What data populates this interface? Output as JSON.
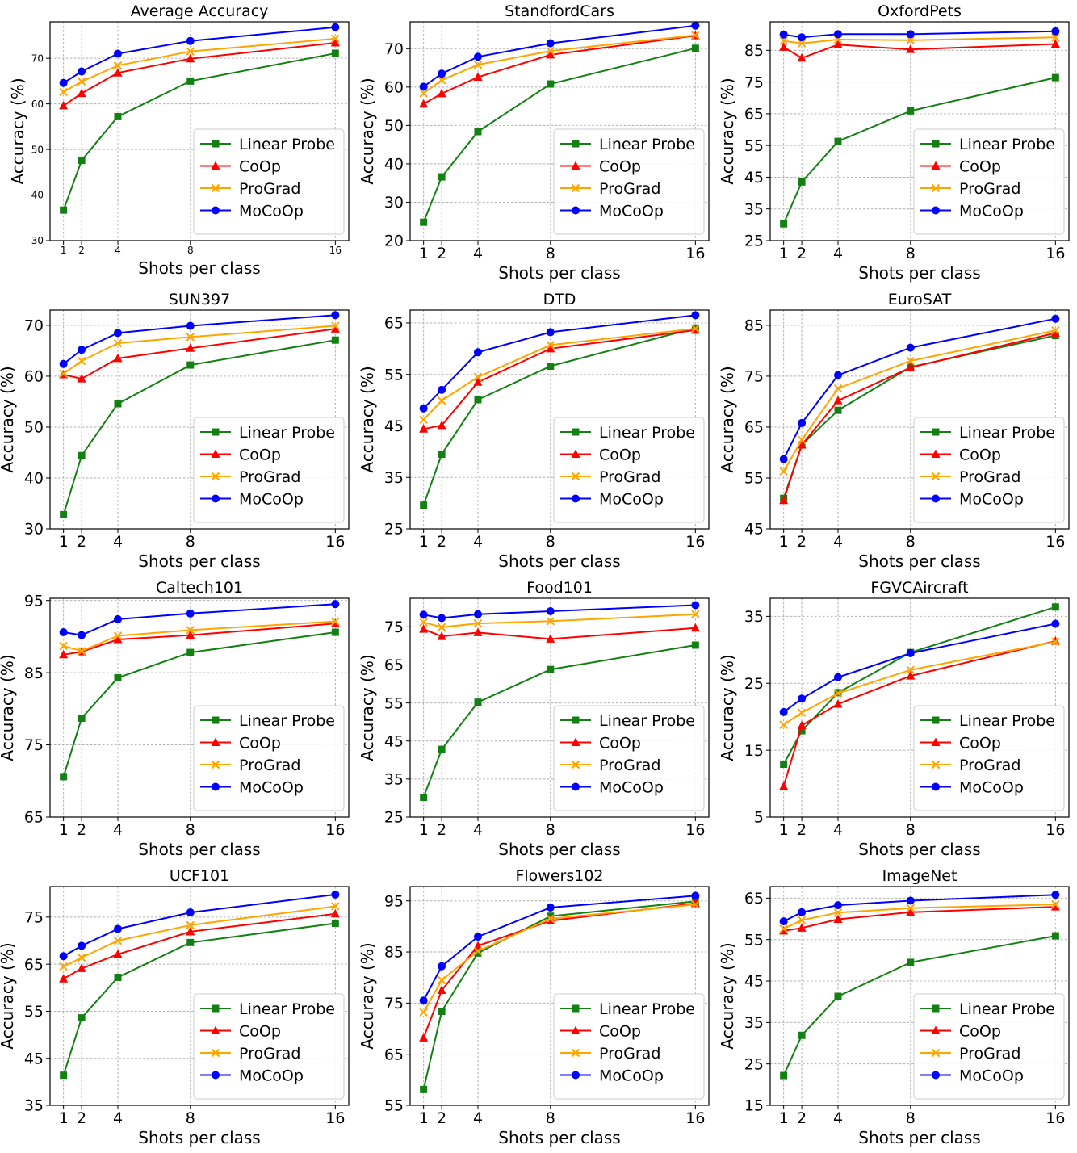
{
  "figure": {
    "x_label": "Shots per class",
    "y_label": "Accuracy (%)",
    "legend": [
      "Linear Probe",
      "CoOp",
      "ProGrad",
      "MoCoOp"
    ],
    "series_colors": {
      "Linear Probe": "#138013",
      "CoOp": "#ff0000",
      "ProGrad": "#ffa500",
      "MoCoOp": "#0000ff"
    },
    "series_markers": {
      "Linear Probe": "square",
      "CoOp": "triangle",
      "ProGrad": "x",
      "MoCoOp": "circle"
    }
  },
  "chart_data": [
    {
      "type": "line",
      "title": "Average Accuracy",
      "xlabel": "Shots per class",
      "ylabel": "Accuracy (%)",
      "x": [
        1,
        2,
        4,
        8,
        16
      ],
      "ylim": [
        30,
        78
      ],
      "yticks": [
        30,
        40,
        50,
        60,
        70
      ],
      "small_ticks": true,
      "series": [
        {
          "name": "Linear Probe",
          "values": [
            36.7,
            47.6,
            57.2,
            65.0,
            71.1
          ]
        },
        {
          "name": "CoOp",
          "values": [
            59.6,
            62.3,
            66.8,
            69.9,
            73.4
          ]
        },
        {
          "name": "ProGrad",
          "values": [
            62.6,
            64.9,
            68.4,
            71.5,
            74.3
          ]
        },
        {
          "name": "MoCoOp",
          "values": [
            64.6,
            67.1,
            71.0,
            73.8,
            76.8
          ]
        }
      ]
    },
    {
      "type": "line",
      "title": "StandfordCars",
      "xlabel": "Shots per class",
      "ylabel": "Accuracy (%)",
      "x": [
        1,
        2,
        4,
        8,
        16
      ],
      "ylim": [
        20,
        77
      ],
      "yticks": [
        20,
        30,
        40,
        50,
        60,
        70
      ],
      "series": [
        {
          "name": "Linear Probe",
          "values": [
            24.8,
            36.6,
            48.4,
            60.8,
            70.1
          ]
        },
        {
          "name": "CoOp",
          "values": [
            55.6,
            58.3,
            62.6,
            68.4,
            73.4
          ]
        },
        {
          "name": "ProGrad",
          "values": [
            58.4,
            61.8,
            65.8,
            69.4,
            73.5
          ]
        },
        {
          "name": "MoCoOp",
          "values": [
            60.1,
            63.5,
            67.9,
            71.4,
            76.0
          ]
        }
      ]
    },
    {
      "type": "line",
      "title": "OxfordPets",
      "xlabel": "Shots per class",
      "ylabel": "Accuracy (%)",
      "x": [
        1,
        2,
        4,
        8,
        16
      ],
      "ylim": [
        25,
        94
      ],
      "yticks": [
        25,
        35,
        45,
        55,
        65,
        75,
        85
      ],
      "series": [
        {
          "name": "Linear Probe",
          "values": [
            30.3,
            43.5,
            56.3,
            65.9,
            76.4
          ]
        },
        {
          "name": "CoOp",
          "values": [
            86.0,
            82.6,
            86.8,
            85.3,
            87.0
          ]
        },
        {
          "name": "ProGrad",
          "values": [
            88.0,
            87.2,
            88.4,
            88.2,
            89.1
          ]
        },
        {
          "name": "MoCoOp",
          "values": [
            90.0,
            89.1,
            90.1,
            90.1,
            91.0
          ]
        }
      ]
    },
    {
      "type": "line",
      "title": "SUN397",
      "xlabel": "Shots per class",
      "ylabel": "Accuracy (%)",
      "x": [
        1,
        2,
        4,
        8,
        16
      ],
      "ylim": [
        30,
        73
      ],
      "yticks": [
        30,
        40,
        50,
        60,
        70
      ],
      "series": [
        {
          "name": "Linear Probe",
          "values": [
            32.8,
            44.4,
            54.6,
            62.2,
            67.1
          ]
        },
        {
          "name": "CoOp",
          "values": [
            60.3,
            59.5,
            63.5,
            65.5,
            69.3
          ]
        },
        {
          "name": "ProGrad",
          "values": [
            60.5,
            63.0,
            66.5,
            67.7,
            69.9
          ]
        },
        {
          "name": "MoCoOp",
          "values": [
            62.4,
            65.2,
            68.5,
            69.9,
            72.0
          ]
        }
      ]
    },
    {
      "type": "line",
      "title": "DTD",
      "xlabel": "Shots per class",
      "ylabel": "Accuracy (%)",
      "x": [
        1,
        2,
        4,
        8,
        16
      ],
      "ylim": [
        25,
        67.5
      ],
      "yticks": [
        25,
        35,
        45,
        55,
        65
      ],
      "series": [
        {
          "name": "Linear Probe",
          "values": [
            29.6,
            39.5,
            50.1,
            56.6,
            64.0
          ]
        },
        {
          "name": "CoOp",
          "values": [
            44.4,
            45.1,
            53.5,
            60.0,
            63.6
          ]
        },
        {
          "name": "ProGrad",
          "values": [
            46.2,
            49.9,
            54.5,
            60.7,
            63.9
          ]
        },
        {
          "name": "MoCoOp",
          "values": [
            48.4,
            52.0,
            59.3,
            63.2,
            66.5
          ]
        }
      ]
    },
    {
      "type": "line",
      "title": "EuroSAT",
      "xlabel": "Shots per class",
      "ylabel": "Accuracy (%)",
      "x": [
        1,
        2,
        4,
        8,
        16
      ],
      "ylim": [
        45,
        88
      ],
      "yticks": [
        45,
        55,
        65,
        75,
        85
      ],
      "series": [
        {
          "name": "Linear Probe",
          "values": [
            51.0,
            61.5,
            68.3,
            76.8,
            83.0
          ]
        },
        {
          "name": "CoOp",
          "values": [
            50.6,
            61.5,
            70.2,
            76.7,
            83.5
          ]
        },
        {
          "name": "ProGrad",
          "values": [
            56.3,
            62.5,
            72.6,
            78.0,
            84.0
          ]
        },
        {
          "name": "MoCoOp",
          "values": [
            58.7,
            65.8,
            75.2,
            80.6,
            86.3
          ]
        }
      ]
    },
    {
      "type": "line",
      "title": "Caltech101",
      "xlabel": "Shots per class",
      "ylabel": "Accuracy (%)",
      "x": [
        1,
        2,
        4,
        8,
        16
      ],
      "ylim": [
        65,
        95.3
      ],
      "yticks": [
        65,
        75,
        85,
        95
      ],
      "series": [
        {
          "name": "Linear Probe",
          "values": [
            70.6,
            78.7,
            84.3,
            87.8,
            90.6
          ]
        },
        {
          "name": "CoOp",
          "values": [
            87.5,
            87.9,
            89.6,
            90.2,
            91.8
          ]
        },
        {
          "name": "ProGrad",
          "values": [
            88.7,
            88.0,
            90.1,
            90.9,
            92.1
          ]
        },
        {
          "name": "MoCoOp",
          "values": [
            90.6,
            90.2,
            92.4,
            93.2,
            94.5
          ]
        }
      ]
    },
    {
      "type": "line",
      "title": "Food101",
      "xlabel": "Shots per class",
      "ylabel": "Accuracy (%)",
      "x": [
        1,
        2,
        4,
        8,
        16
      ],
      "ylim": [
        25,
        82.5
      ],
      "yticks": [
        25,
        35,
        45,
        55,
        65,
        75
      ],
      "series": [
        {
          "name": "Linear Probe",
          "values": [
            30.2,
            42.8,
            55.2,
            63.8,
            70.2
          ]
        },
        {
          "name": "CoOp",
          "values": [
            74.4,
            72.5,
            73.5,
            71.8,
            74.7
          ]
        },
        {
          "name": "ProGrad",
          "values": [
            76.2,
            74.9,
            75.9,
            76.5,
            78.3
          ]
        },
        {
          "name": "MoCoOp",
          "values": [
            78.2,
            77.3,
            78.3,
            79.1,
            80.7
          ]
        }
      ]
    },
    {
      "type": "line",
      "title": "FGVCAircraft",
      "xlabel": "Shots per class",
      "ylabel": "Accuracy (%)",
      "x": [
        1,
        2,
        4,
        8,
        16
      ],
      "ylim": [
        5,
        37.7
      ],
      "yticks": [
        5,
        15,
        25,
        35
      ],
      "series": [
        {
          "name": "Linear Probe",
          "values": [
            12.9,
            17.9,
            23.6,
            29.6,
            36.4
          ]
        },
        {
          "name": "CoOp",
          "values": [
            9.6,
            18.7,
            21.9,
            26.1,
            31.3
          ]
        },
        {
          "name": "ProGrad",
          "values": [
            18.8,
            20.6,
            23.5,
            27.0,
            31.2
          ]
        },
        {
          "name": "MoCoOp",
          "values": [
            20.7,
            22.7,
            25.9,
            29.5,
            33.9
          ]
        }
      ]
    },
    {
      "type": "line",
      "title": "UCF101",
      "xlabel": "Shots per class",
      "ylabel": "Accuracy (%)",
      "x": [
        1,
        2,
        4,
        8,
        16
      ],
      "ylim": [
        35,
        81.5
      ],
      "yticks": [
        35,
        45,
        55,
        65,
        75
      ],
      "series": [
        {
          "name": "Linear Probe",
          "values": [
            41.4,
            53.6,
            62.2,
            69.6,
            73.7
          ]
        },
        {
          "name": "CoOp",
          "values": [
            61.9,
            64.1,
            67.1,
            71.9,
            75.7
          ]
        },
        {
          "name": "ProGrad",
          "values": [
            64.5,
            66.4,
            70.0,
            73.3,
            77.3
          ]
        },
        {
          "name": "MoCoOp",
          "values": [
            66.7,
            68.9,
            72.5,
            76.0,
            79.8
          ]
        }
      ]
    },
    {
      "type": "line",
      "title": "Flowers102",
      "xlabel": "Shots per class",
      "ylabel": "Accuracy (%)",
      "x": [
        1,
        2,
        4,
        8,
        16
      ],
      "ylim": [
        55,
        97.8
      ],
      "yticks": [
        55,
        65,
        75,
        85,
        95
      ],
      "series": [
        {
          "name": "Linear Probe",
          "values": [
            58.1,
            73.4,
            84.8,
            92.0,
            94.9
          ]
        },
        {
          "name": "CoOp",
          "values": [
            68.2,
            77.5,
            86.2,
            91.1,
            94.5
          ]
        },
        {
          "name": "ProGrad",
          "values": [
            73.2,
            79.5,
            85.2,
            91.5,
            94.3
          ]
        },
        {
          "name": "MoCoOp",
          "values": [
            75.5,
            82.2,
            88.0,
            93.7,
            96.0
          ]
        }
      ]
    },
    {
      "type": "line",
      "title": "ImageNet",
      "xlabel": "Shots per class",
      "ylabel": "Accuracy (%)",
      "x": [
        1,
        2,
        4,
        8,
        16
      ],
      "ylim": [
        15,
        67.8
      ],
      "yticks": [
        15,
        25,
        35,
        45,
        55,
        65
      ],
      "series": [
        {
          "name": "Linear Probe",
          "values": [
            22.2,
            31.9,
            41.3,
            49.5,
            55.9
          ]
        },
        {
          "name": "CoOp",
          "values": [
            57.1,
            57.8,
            59.9,
            61.6,
            62.9
          ]
        },
        {
          "name": "ProGrad",
          "values": [
            57.6,
            59.7,
            61.5,
            62.6,
            63.5
          ]
        },
        {
          "name": "MoCoOp",
          "values": [
            59.4,
            61.6,
            63.3,
            64.4,
            65.8
          ]
        }
      ]
    }
  ]
}
